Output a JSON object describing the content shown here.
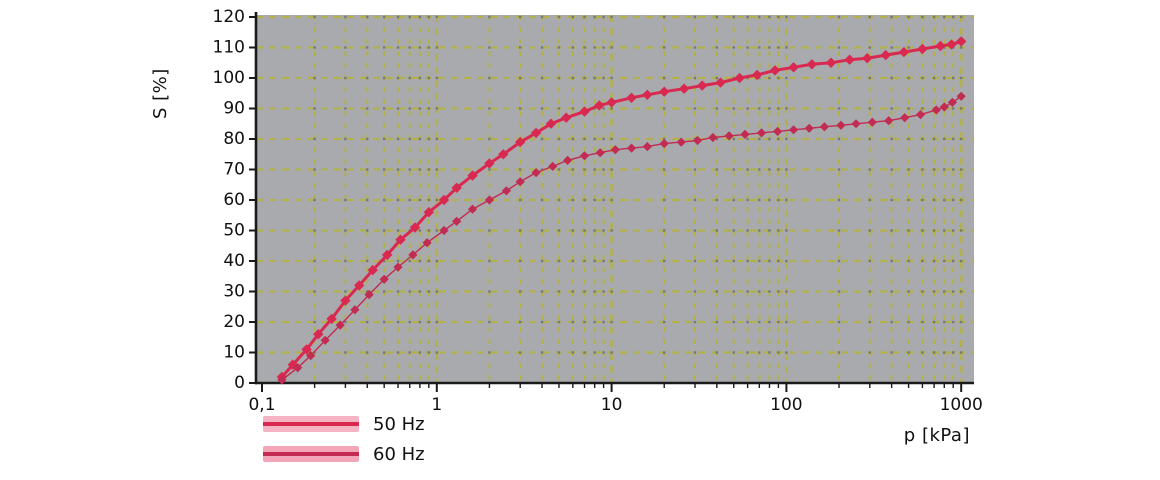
{
  "chart_data": {
    "type": "scatter",
    "title": "",
    "xlabel": "p [kPa]",
    "ylabel": "S [%]",
    "x_scale": "log",
    "xlim": [
      0.1,
      1000
    ],
    "ylim": [
      0,
      120
    ],
    "x_tick_values": [
      0.1,
      1,
      10,
      100,
      1000
    ],
    "x_tick_labels": [
      "0,1",
      "1",
      "10",
      "100",
      "1000"
    ],
    "y_ticks": [
      0,
      10,
      20,
      30,
      40,
      50,
      60,
      70,
      80,
      90,
      100,
      110,
      120
    ],
    "grid": "dashed olive major+minor, log minors on x",
    "legend_position": "below-left",
    "series": [
      {
        "name": "50 Hz",
        "color": "#d92950",
        "band_color": "#f5b4c3",
        "marker": "diamond",
        "points": [
          [
            0.13,
            2
          ],
          [
            0.15,
            6
          ],
          [
            0.18,
            11
          ],
          [
            0.21,
            16
          ],
          [
            0.25,
            21
          ],
          [
            0.3,
            27
          ],
          [
            0.36,
            32
          ],
          [
            0.43,
            37
          ],
          [
            0.52,
            42
          ],
          [
            0.62,
            47
          ],
          [
            0.75,
            51
          ],
          [
            0.9,
            56
          ],
          [
            1.1,
            60
          ],
          [
            1.3,
            64
          ],
          [
            1.6,
            68
          ],
          [
            2.0,
            72
          ],
          [
            2.4,
            75
          ],
          [
            3.0,
            79
          ],
          [
            3.7,
            82
          ],
          [
            4.5,
            85
          ],
          [
            5.5,
            87
          ],
          [
            7,
            89
          ],
          [
            8.5,
            91
          ],
          [
            10,
            92
          ],
          [
            13,
            93.5
          ],
          [
            16,
            94.5
          ],
          [
            20,
            95.5
          ],
          [
            26,
            96.5
          ],
          [
            33,
            97.5
          ],
          [
            42,
            98.5
          ],
          [
            54,
            100
          ],
          [
            68,
            101
          ],
          [
            86,
            102.5
          ],
          [
            110,
            103.5
          ],
          [
            140,
            104.5
          ],
          [
            180,
            105
          ],
          [
            230,
            106
          ],
          [
            290,
            106.5
          ],
          [
            370,
            107.5
          ],
          [
            470,
            108.5
          ],
          [
            600,
            109.5
          ],
          [
            760,
            110.5
          ],
          [
            880,
            111
          ],
          [
            1000,
            112
          ]
        ]
      },
      {
        "name": "60 Hz",
        "color": "#c22b52",
        "band_color": "#f2a6b8",
        "marker": "diamond",
        "points": [
          [
            0.13,
            1
          ],
          [
            0.16,
            5
          ],
          [
            0.19,
            9
          ],
          [
            0.23,
            14
          ],
          [
            0.28,
            19
          ],
          [
            0.34,
            24
          ],
          [
            0.41,
            29
          ],
          [
            0.5,
            34
          ],
          [
            0.6,
            38
          ],
          [
            0.73,
            42
          ],
          [
            0.88,
            46
          ],
          [
            1.1,
            50
          ],
          [
            1.3,
            53
          ],
          [
            1.6,
            57
          ],
          [
            2.0,
            60
          ],
          [
            2.5,
            63
          ],
          [
            3.0,
            66
          ],
          [
            3.7,
            69
          ],
          [
            4.6,
            71
          ],
          [
            5.6,
            73
          ],
          [
            7,
            74.5
          ],
          [
            8.6,
            75.5
          ],
          [
            10.5,
            76.5
          ],
          [
            13,
            77
          ],
          [
            16,
            77.5
          ],
          [
            20,
            78.5
          ],
          [
            25,
            79
          ],
          [
            31,
            79.5
          ],
          [
            38,
            80.5
          ],
          [
            47,
            81
          ],
          [
            58,
            81.5
          ],
          [
            72,
            82
          ],
          [
            89,
            82.5
          ],
          [
            110,
            83
          ],
          [
            135,
            83.5
          ],
          [
            165,
            84
          ],
          [
            205,
            84.5
          ],
          [
            250,
            85
          ],
          [
            310,
            85.5
          ],
          [
            385,
            86
          ],
          [
            475,
            87
          ],
          [
            585,
            88
          ],
          [
            720,
            89.5
          ],
          [
            800,
            90.5
          ],
          [
            890,
            92
          ],
          [
            1000,
            94
          ]
        ]
      }
    ]
  },
  "colors": {
    "plot_bg": "#a8aaad",
    "grid": "#b2b14d",
    "axis": "#1a1a1a",
    "tick_text": "#111111"
  }
}
